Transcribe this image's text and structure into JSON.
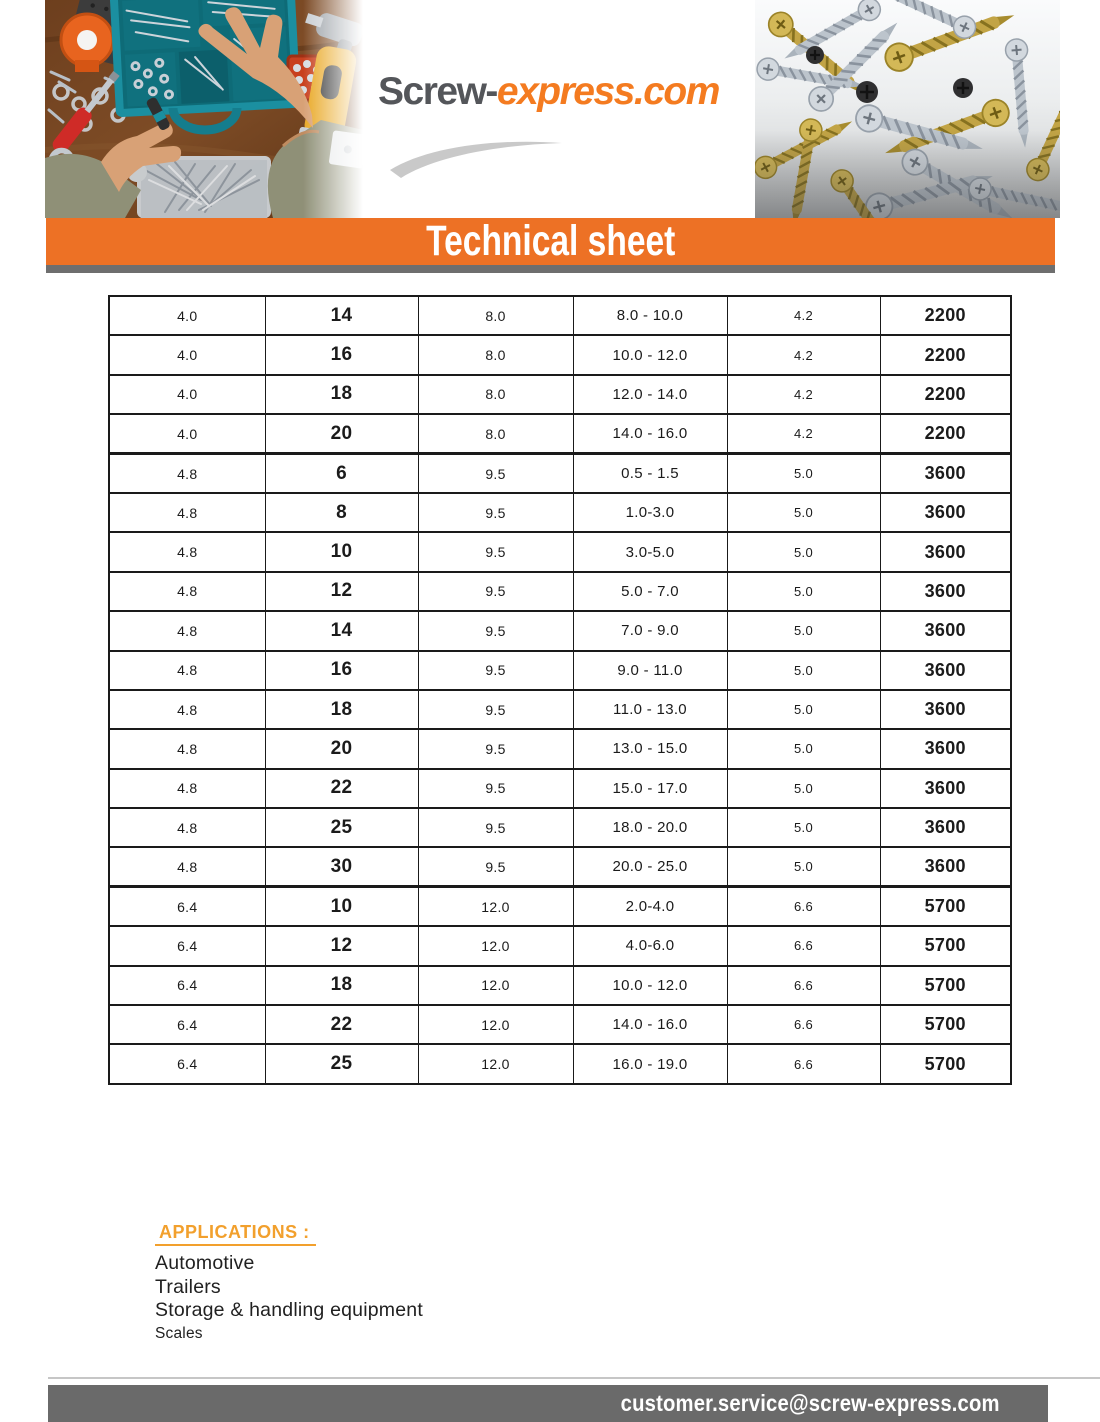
{
  "logo": {
    "primary": "Screw-",
    "secondary": "express.com"
  },
  "banner": {
    "title": "Technical sheet"
  },
  "table": {
    "rows": [
      [
        "4.0",
        "14",
        "8.0",
        "8.0 - 10.0",
        "4.2",
        "2200"
      ],
      [
        "4.0",
        "16",
        "8.0",
        "10.0 - 12.0",
        "4.2",
        "2200"
      ],
      [
        "4.0",
        "18",
        "8.0",
        "12.0 - 14.0",
        "4.2",
        "2200"
      ],
      [
        "4.0",
        "20",
        "8.0",
        "14.0 - 16.0",
        "4.2",
        "2200"
      ],
      [
        "4.8",
        "6",
        "9.5",
        "0.5 - 1.5",
        "5.0",
        "3600"
      ],
      [
        "4.8",
        "8",
        "9.5",
        "1.0-3.0",
        "5.0",
        "3600"
      ],
      [
        "4.8",
        "10",
        "9.5",
        "3.0-5.0",
        "5.0",
        "3600"
      ],
      [
        "4.8",
        "12",
        "9.5",
        "5.0 - 7.0",
        "5.0",
        "3600"
      ],
      [
        "4.8",
        "14",
        "9.5",
        "7.0 - 9.0",
        "5.0",
        "3600"
      ],
      [
        "4.8",
        "16",
        "9.5",
        "9.0 - 11.0",
        "5.0",
        "3600"
      ],
      [
        "4.8",
        "18",
        "9.5",
        "11.0 - 13.0",
        "5.0",
        "3600"
      ],
      [
        "4.8",
        "20",
        "9.5",
        "13.0 - 15.0",
        "5.0",
        "3600"
      ],
      [
        "4.8",
        "22",
        "9.5",
        "15.0 - 17.0",
        "5.0",
        "3600"
      ],
      [
        "4.8",
        "25",
        "9.5",
        "18.0 - 20.0",
        "5.0",
        "3600"
      ],
      [
        "4.8",
        "30",
        "9.5",
        "20.0 - 25.0",
        "5.0",
        "3600"
      ],
      [
        "6.4",
        "10",
        "12.0",
        "2.0-4.0",
        "6.6",
        "5700"
      ],
      [
        "6.4",
        "12",
        "12.0",
        "4.0-6.0",
        "6.6",
        "5700"
      ],
      [
        "6.4",
        "18",
        "12.0",
        "10.0 - 12.0",
        "6.6",
        "5700"
      ],
      [
        "6.4",
        "22",
        "12.0",
        "14.0 - 16.0",
        "6.6",
        "5700"
      ],
      [
        "6.4",
        "25",
        "12.0",
        "16.0 - 19.0",
        "6.6",
        "5700"
      ]
    ]
  },
  "applications": {
    "heading": "APPLICATIONS :",
    "items": [
      "Automotive",
      "Trailers",
      "Storage & handling equipment",
      "Scales"
    ]
  },
  "footer": {
    "email": "customer.service@screw-express.com"
  },
  "images": {
    "left": "workbench-with-screw-organizer-photo",
    "right": "pile-of-screws-photo"
  },
  "colors": {
    "banner_orange": "#ED7125",
    "logo_gray": "#54565A",
    "logo_orange": "#F47B20",
    "applications_orange": "#F2A02D",
    "footer_gray": "#6A6A6A",
    "banner_shadow_gray": "#6E6E6E"
  }
}
